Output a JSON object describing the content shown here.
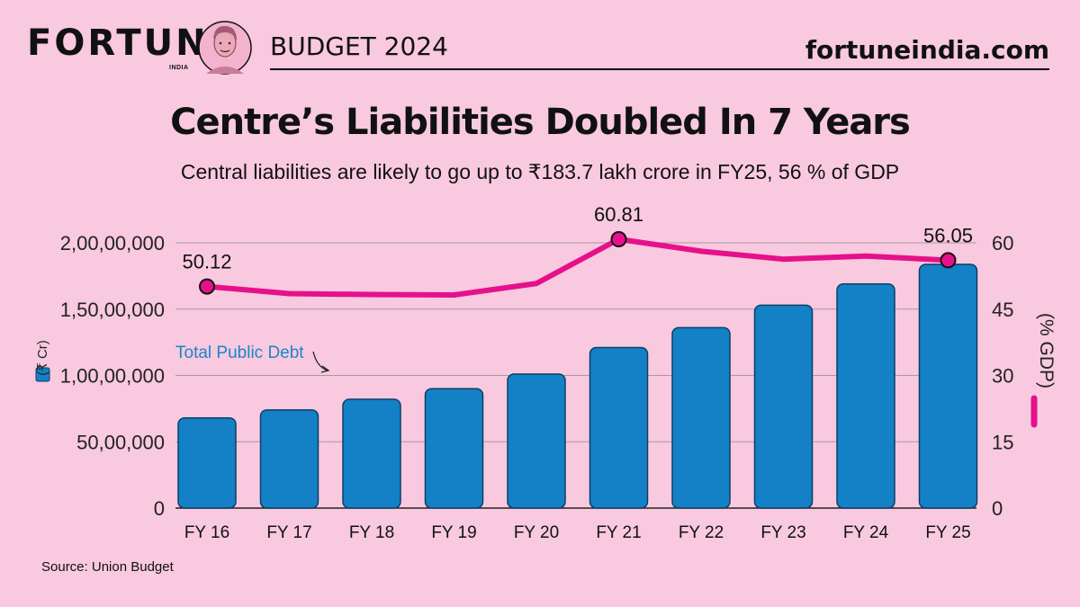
{
  "header": {
    "brand": "FORTUNE",
    "brand_sub": "INDIA",
    "budget_label": "BUDGET 2024",
    "website": "fortuneindia.com"
  },
  "colors": {
    "background": "#f8c9df",
    "bar": "#1481c6",
    "bar_stroke": "#0b3f66",
    "line": "#e6118a",
    "grid": "#a89aa3"
  },
  "chart_data": {
    "type": "bar",
    "title": "Centre’s Liabilities Doubled In 7 Years",
    "subtitle": "Central liabilities are likely to go up to ₹183.7 lakh crore in FY25, 56 % of GDP",
    "categories": [
      "FY 16",
      "FY 17",
      "FY 18",
      "FY 19",
      "FY 20",
      "FY 21",
      "FY 22",
      "FY 23",
      "FY 24",
      "FY 25"
    ],
    "series": [
      {
        "name": "Total Public Debt",
        "axis": "left",
        "values": [
          6800000,
          7400000,
          8200000,
          9000000,
          10100000,
          12100000,
          13600000,
          15300000,
          16900000,
          18370000
        ]
      },
      {
        "name": "% GDP",
        "axis": "right",
        "type": "line",
        "values": [
          50.12,
          48.5,
          48.3,
          48.2,
          50.8,
          60.81,
          58.1,
          56.3,
          57.0,
          56.05
        ]
      }
    ],
    "ylabel": "(₹ Cr)",
    "y2label": "(% GDP)",
    "ylim": [
      0,
      20000000
    ],
    "y2lim": [
      0,
      60
    ],
    "yticks": [
      0,
      5000000,
      10000000,
      15000000,
      20000000
    ],
    "ytick_labels": [
      "0",
      "50,00,000",
      "1,00,00,000",
      "1,50,00,000",
      "2,00,00,000"
    ],
    "y2ticks": [
      0,
      15,
      30,
      45,
      60
    ],
    "y2tick_labels": [
      "0",
      "15",
      "30",
      "45",
      "60"
    ],
    "annotations": [
      {
        "category": "FY 16",
        "text": "50.12"
      },
      {
        "category": "FY 21",
        "text": "60.81"
      },
      {
        "category": "FY 25",
        "text": "56.05"
      }
    ],
    "legend": [
      {
        "series": "Total Public Debt",
        "marker": "square",
        "position": "left"
      },
      {
        "series": "% GDP",
        "marker": "line",
        "position": "right"
      }
    ],
    "source": "Source: Union Budget"
  }
}
